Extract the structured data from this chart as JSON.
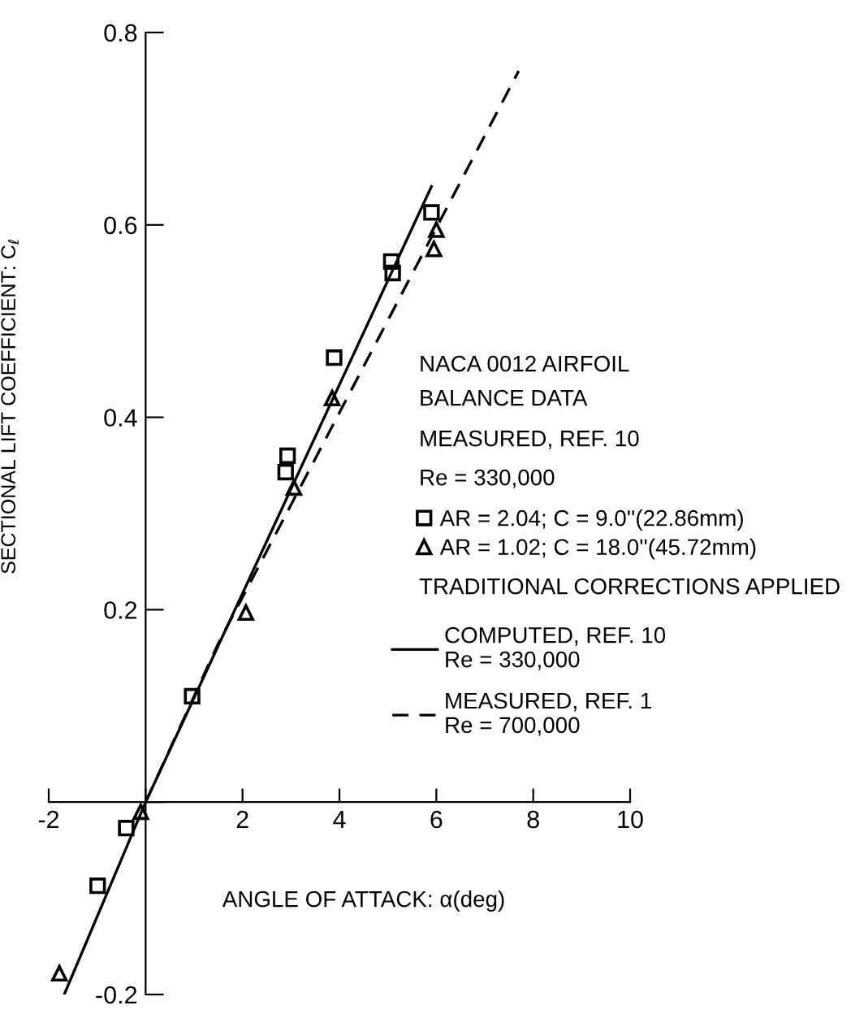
{
  "chart_data": {
    "type": "scatter",
    "ylabel": "SECTIONAL LIFT COEFFICIENT: C$_{ℓ}$",
    "xlabel": "ANGLE OF ATTACK: α(deg)",
    "xlim": [
      -2,
      10
    ],
    "ylim": [
      -0.2,
      0.8
    ],
    "xticks": [
      -2,
      {
        "value": 0,
        "label": null
      },
      2,
      4,
      6,
      8,
      10
    ],
    "yticks": [
      {
        "value": -0.2,
        "label": "-0.2"
      },
      {
        "value": 0,
        "label": null
      },
      0.2,
      0.4,
      0.6,
      0.8
    ],
    "grid": false,
    "legend": "right",
    "annotations": [
      "NACA 0012 AIRFOIL",
      "BALANCE DATA",
      "MEASURED, REF. 10",
      "Re = 330,000",
      "TRADITIONAL CORRECTIONS APPLIED"
    ],
    "series": [
      {
        "name": "AR = 2.04; C = 9.0''(22.86mm)",
        "marker": "square",
        "color": "#000000",
        "x": [
          -0.99,
          -0.4,
          0.96,
          2.89,
          2.93,
          3.89,
          5.07,
          5.1,
          5.9
        ],
        "values": [
          -0.087,
          -0.027,
          0.11,
          0.343,
          0.36,
          0.462,
          0.562,
          0.55,
          0.613
        ]
      },
      {
        "name": "AR = 1.02; C = 18.0''(45.72mm)",
        "marker": "triangle",
        "color": "#000000",
        "x": [
          -1.78,
          -0.1,
          2.07,
          3.06,
          3.85,
          5.95,
          6.0
        ],
        "values": [
          -0.178,
          -0.01,
          0.197,
          0.327,
          0.42,
          0.575,
          0.595
        ]
      },
      {
        "name": "COMPUTED, REF. 10\nRe = 330,000",
        "type": "line",
        "line_style": "solid",
        "color": "#000000",
        "x": [
          -1.68,
          0,
          5.9
        ],
        "values": [
          -0.2,
          0,
          0.64
        ]
      },
      {
        "name": "MEASURED, REF. 1\nRe = 700,000",
        "type": "line",
        "line_style": "dashed",
        "color": "#000000",
        "x": [
          0,
          1.5,
          7.7
        ],
        "values": [
          0,
          0.165,
          0.76
        ]
      }
    ]
  }
}
